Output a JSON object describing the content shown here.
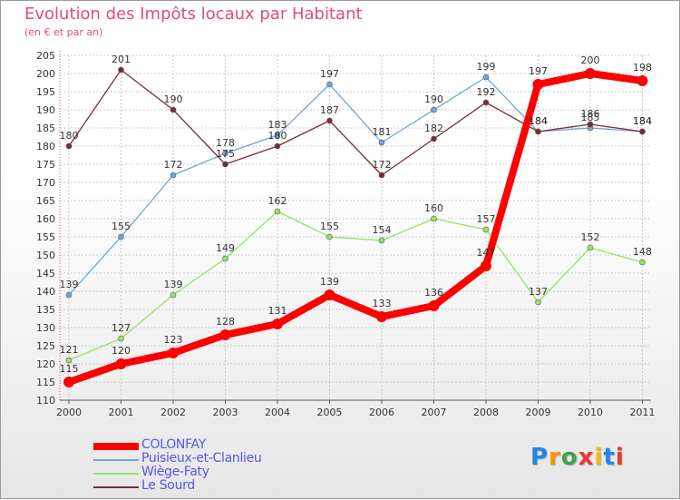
{
  "title": "Evolution des Impôts locaux par Habitant",
  "subtitle": "(en € et par an)",
  "logo": {
    "text": "Proxiti",
    "colors": [
      "#1e88e5",
      "#ff8f00",
      "#43a047",
      "#e53935",
      "#ffb300",
      "#1e88e5",
      "#e53935"
    ]
  },
  "chart_data": {
    "type": "line",
    "title": "Evolution des Impôts locaux par Habitant",
    "subtitle": "(en € et par an)",
    "xlabel": "",
    "ylabel": "",
    "categories": [
      "2000",
      "2001",
      "2002",
      "2003",
      "2004",
      "2005",
      "2006",
      "2007",
      "2008",
      "2009",
      "2010",
      "2011"
    ],
    "ylim": [
      110,
      205
    ],
    "yticks": [
      110,
      115,
      120,
      125,
      130,
      135,
      140,
      145,
      150,
      155,
      160,
      165,
      170,
      175,
      180,
      185,
      190,
      195,
      200,
      205
    ],
    "grid": true,
    "legend_position": "bottom-left",
    "series": [
      {
        "name": "COLONFAY",
        "color": "#ff0000",
        "emphasis": true,
        "values": [
          115,
          120,
          123,
          128,
          131,
          139,
          133,
          136,
          147,
          197,
          200,
          198
        ]
      },
      {
        "name": "Puisieux-et-Clanlieu",
        "color": "#6fa6d6",
        "values": [
          139,
          155,
          172,
          178,
          183,
          197,
          181,
          190,
          199,
          184,
          185,
          184
        ]
      },
      {
        "name": "Wiège-Faty",
        "color": "#99e066",
        "values": [
          121,
          127,
          139,
          149,
          162,
          155,
          154,
          160,
          157,
          137,
          152,
          148
        ]
      },
      {
        "name": "Le Sourd",
        "color": "#7a2c36",
        "values": [
          180,
          201,
          190,
          175,
          180,
          187,
          172,
          182,
          192,
          184,
          186,
          184
        ]
      }
    ]
  }
}
